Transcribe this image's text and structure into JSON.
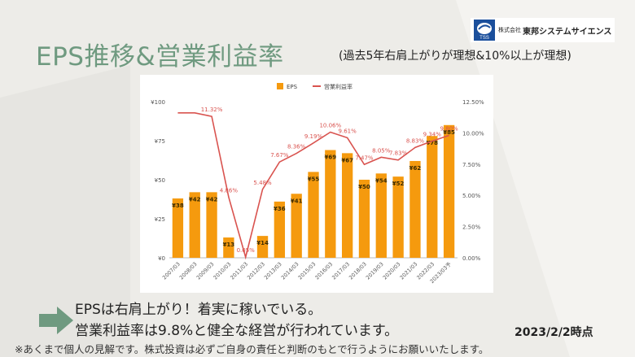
{
  "header": {
    "title": "EPS推移&営業利益率",
    "subtitle": "(過去5年右肩上がりが理想&10%以上が理想)"
  },
  "logo": {
    "small_text": "株式会社",
    "company": "東邦システムサイエンス",
    "mark_text": "TSS",
    "icon": "tss-logo-icon"
  },
  "chart_data": {
    "type": "bar",
    "categories": [
      "2007/03",
      "2008/03",
      "2009/03",
      "2010/03",
      "2011/03",
      "2012/03",
      "2013/03",
      "2014/03",
      "2015/03",
      "2016/03",
      "2017/03",
      "2018/03",
      "2019/03",
      "2020/03",
      "2021/03",
      "2022/03",
      "2023/03予"
    ],
    "series": [
      {
        "name": "EPS",
        "kind": "bar",
        "axis": "left",
        "values": [
          38,
          42,
          42,
          13,
          null,
          14,
          36,
          41,
          55,
          69,
          67,
          50,
          54,
          52,
          62,
          78,
          85
        ],
        "labels": [
          "¥38",
          "¥42",
          "¥42",
          "¥13",
          "",
          "¥14",
          "¥36",
          "¥41",
          "¥55",
          "¥69",
          "¥67",
          "¥50",
          "¥54",
          "¥52",
          "¥62",
          "¥78",
          "¥85"
        ],
        "color": "#f59a0e"
      },
      {
        "name": "営業利益率",
        "kind": "line",
        "axis": "right",
        "values": [
          11.6,
          11.6,
          11.32,
          4.86,
          0.05,
          5.48,
          7.67,
          8.36,
          9.19,
          10.06,
          9.61,
          7.47,
          8.05,
          7.83,
          8.83,
          9.34,
          9.8
        ],
        "labels": [
          "",
          "",
          "11.32%",
          "4.86%",
          "0.05%",
          "5.48%",
          "7.67%",
          "8.36%",
          "9.19%",
          "10.06%",
          "9.61%",
          "7.47%",
          "8.05%",
          "7.83%",
          "8.83%",
          "9.34%",
          "9.80%"
        ],
        "color": "#d9534f"
      }
    ],
    "y_left": {
      "range": [
        0,
        100
      ],
      "ticks": [
        "¥0",
        "¥25",
        "¥50",
        "¥75",
        "¥100"
      ]
    },
    "y_right": {
      "range": [
        0,
        12.5
      ],
      "ticks": [
        "0.00%",
        "2.50%",
        "5.00%",
        "7.50%",
        "10.00%",
        "12.50%"
      ]
    },
    "legend_position": "top-center",
    "grid": false
  },
  "bullets": {
    "line1": "EPSは右肩上がり！着実に稼いでいる。",
    "line2": "営業利益率は9.8%と健全な経営が行われています。"
  },
  "date": "2023/2/2時点",
  "note": "※あくまで個人の見解です。株式投資は必ずご自身の責任と判断のもとで行うようにお願いいたします。",
  "colors": {
    "accent": "#6f9a80",
    "bar": "#f59a0e",
    "line": "#d9534f",
    "arrow": "#6f9a80"
  }
}
